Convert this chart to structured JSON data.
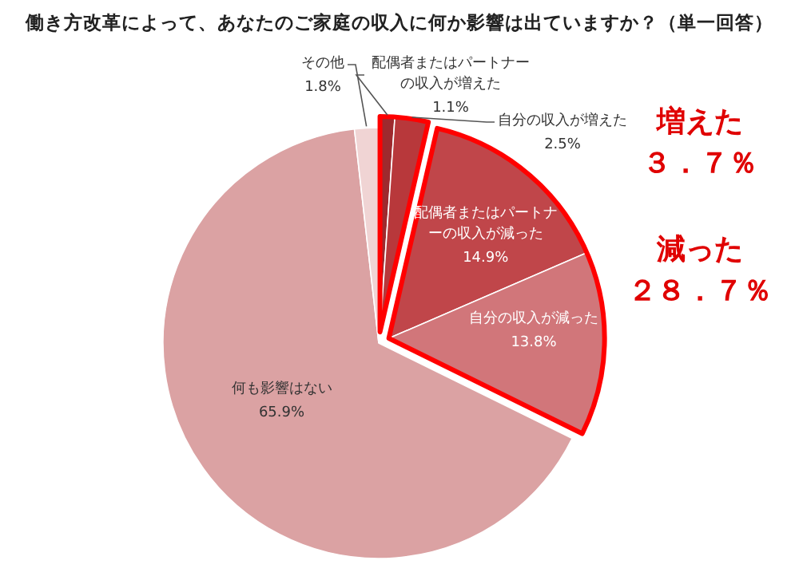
{
  "chart_data": {
    "type": "pie",
    "title": "働き方改革によって、あなたのご家庭の収入に何か影響は出ていますか？（単一回答）",
    "categories": [
      "配偶者またはパートナーの収入が増えた",
      "自分の収入が増えた",
      "配偶者またはパートナーの収入が減った",
      "自分の収入が減った",
      "何も影響はない",
      "その他"
    ],
    "values": [
      1.1,
      2.5,
      14.9,
      13.8,
      65.9,
      1.8
    ],
    "value_labels": [
      "1.1%",
      "2.5%",
      "14.9%",
      "13.8%",
      "65.9%",
      "1.8%"
    ],
    "colors": [
      "#9e2a2e",
      "#b8383b",
      "#c0464a",
      "#d1767a",
      "#dba2a3",
      "#f0d4d4"
    ],
    "annotations": [
      "増えた",
      "３．７％",
      "減った",
      "２８．７％"
    ]
  }
}
